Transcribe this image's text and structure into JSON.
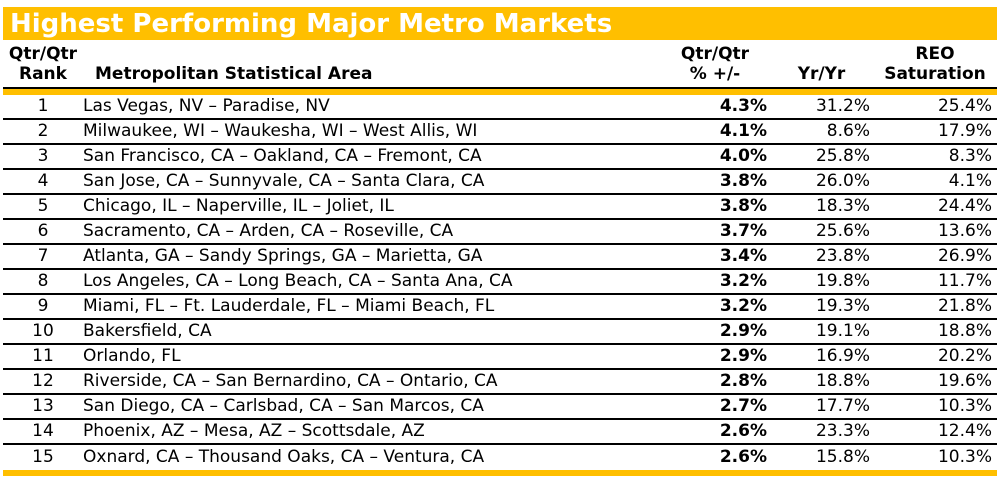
{
  "title": "Highest Performing Major Metro Markets",
  "colors": {
    "gold": "#FFBF00",
    "title_text": "#FFFFFF",
    "body_text": "#000000",
    "row_divider": "#000000"
  },
  "table": {
    "headers": {
      "rank_l1": "Qtr/Qtr",
      "rank_l2": "Rank",
      "msa": "Metropolitan Statistical Area",
      "qtr_l1": "Qtr/Qtr",
      "qtr_l2": "% +/-",
      "yr": "Yr/Yr",
      "reo_l1": "REO",
      "reo_l2": "Saturation"
    }
  },
  "chart_data": {
    "type": "table",
    "title": "Highest Performing Major Metro Markets",
    "columns": [
      "Qtr/Qtr Rank",
      "Metropolitan Statistical Area",
      "Qtr/Qtr % +/-",
      "Yr/Yr",
      "REO Saturation"
    ],
    "rows": [
      {
        "rank": "1",
        "msa": "Las Vegas, NV – Paradise, NV",
        "qtr": "4.3%",
        "yr": "31.2%",
        "reo": "25.4%"
      },
      {
        "rank": "2",
        "msa": "Milwaukee, WI – Waukesha, WI – West Allis, WI",
        "qtr": "4.1%",
        "yr": "8.6%",
        "reo": "17.9%"
      },
      {
        "rank": "3",
        "msa": "San Francisco, CA – Oakland, CA – Fremont, CA",
        "qtr": "4.0%",
        "yr": "25.8%",
        "reo": "8.3%"
      },
      {
        "rank": "4",
        "msa": "San Jose, CA – Sunnyvale, CA – Santa Clara, CA",
        "qtr": "3.8%",
        "yr": "26.0%",
        "reo": "4.1%"
      },
      {
        "rank": "5",
        "msa": "Chicago, IL – Naperville, IL – Joliet, IL",
        "qtr": "3.8%",
        "yr": "18.3%",
        "reo": "24.4%"
      },
      {
        "rank": "6",
        "msa": "Sacramento, CA – Arden, CA – Roseville, CA",
        "qtr": "3.7%",
        "yr": "25.6%",
        "reo": "13.6%"
      },
      {
        "rank": "7",
        "msa": "Atlanta, GA – Sandy Springs, GA – Marietta, GA",
        "qtr": "3.4%",
        "yr": "23.8%",
        "reo": "26.9%"
      },
      {
        "rank": "8",
        "msa": "Los Angeles, CA – Long Beach, CA – Santa Ana, CA",
        "qtr": "3.2%",
        "yr": "19.8%",
        "reo": "11.7%"
      },
      {
        "rank": "9",
        "msa": "Miami, FL – Ft. Lauderdale, FL – Miami Beach, FL",
        "qtr": "3.2%",
        "yr": "19.3%",
        "reo": "21.8%"
      },
      {
        "rank": "10",
        "msa": "Bakersfield, CA",
        "qtr": "2.9%",
        "yr": "19.1%",
        "reo": "18.8%"
      },
      {
        "rank": "11",
        "msa": "Orlando, FL",
        "qtr": "2.9%",
        "yr": "16.9%",
        "reo": "20.2%"
      },
      {
        "rank": "12",
        "msa": "Riverside, CA – San Bernardino, CA – Ontario, CA",
        "qtr": "2.8%",
        "yr": "18.8%",
        "reo": "19.6%"
      },
      {
        "rank": "13",
        "msa": "San Diego, CA – Carlsbad, CA – San Marcos, CA",
        "qtr": "2.7%",
        "yr": "17.7%",
        "reo": "10.3%"
      },
      {
        "rank": "14",
        "msa": "Phoenix, AZ – Mesa, AZ – Scottsdale, AZ",
        "qtr": "2.6%",
        "yr": "23.3%",
        "reo": "12.4%"
      },
      {
        "rank": "15",
        "msa": "Oxnard, CA – Thousand Oaks, CA – Ventura, CA",
        "qtr": "2.6%",
        "yr": "15.8%",
        "reo": "10.3%"
      }
    ]
  }
}
